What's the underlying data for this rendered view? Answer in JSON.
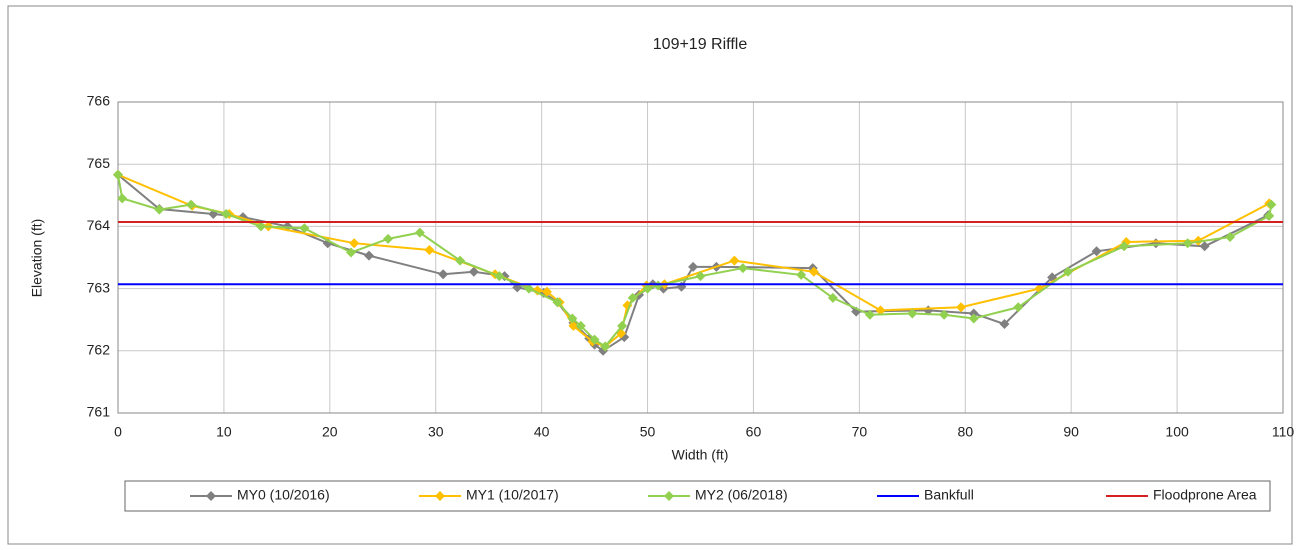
{
  "chart_data": {
    "type": "line",
    "title": "109+19 Riffle",
    "x_label": "Width (ft)",
    "y_label": "Elevation (ft)",
    "xlim": [
      0,
      110
    ],
    "xticks": [
      0,
      10,
      20,
      30,
      40,
      50,
      60,
      70,
      80,
      90,
      100,
      110
    ],
    "ylim": [
      761,
      766
    ],
    "yticks": [
      761,
      762,
      763,
      764,
      765,
      766
    ],
    "grid": true,
    "legend": "bottom",
    "series": [
      {
        "name": "MY0 (10/2016)",
        "color": "#808080",
        "marker": "diamond",
        "x": [
          0,
          3.9,
          9,
          11.8,
          16,
          19.8,
          23.7,
          30.7,
          33.6,
          36.5,
          37.7,
          40.2,
          41.5,
          43,
          44.5,
          45,
          45.8,
          47.8,
          49.2,
          50.5,
          51.5,
          53.2,
          54.3,
          56.5,
          65.6,
          69.7,
          76.5,
          80.8,
          83.7,
          88.2,
          92.4,
          98,
          102.6,
          108.6
        ],
        "values": [
          764.83,
          764.28,
          764.2,
          764.15,
          764.0,
          763.73,
          763.53,
          763.23,
          763.27,
          763.2,
          763.02,
          762.93,
          762.78,
          762.45,
          762.2,
          762.1,
          762.0,
          762.22,
          762.9,
          763.07,
          763.0,
          763.03,
          763.35,
          763.35,
          763.33,
          762.63,
          762.65,
          762.6,
          762.43,
          763.18,
          763.6,
          763.73,
          763.68,
          764.18
        ]
      },
      {
        "name": "MY1 (10/2017)",
        "color": "#ffc000",
        "marker": "diamond",
        "x": [
          0,
          7,
          10.5,
          14.2,
          22.3,
          29.4,
          35.6,
          39.6,
          40.5,
          41.7,
          43,
          44.8,
          46,
          47.5,
          48.1,
          49.9,
          51.6,
          58.2,
          65.7,
          72,
          79.6,
          87,
          95.2,
          102,
          108.7
        ],
        "values": [
          764.83,
          764.33,
          764.2,
          764.0,
          763.73,
          763.62,
          763.23,
          762.97,
          762.95,
          762.78,
          762.4,
          762.15,
          762.07,
          762.28,
          762.73,
          763.05,
          763.07,
          763.45,
          763.27,
          762.65,
          762.7,
          763.0,
          763.75,
          763.77,
          764.37
        ]
      },
      {
        "name": "MY2 (06/2018)",
        "color": "#92d050",
        "marker": "diamond",
        "x": [
          0,
          0.4,
          3.9,
          6.9,
          10.2,
          13.5,
          17.6,
          22,
          25.5,
          28.5,
          32.3,
          36,
          38.8,
          41.5,
          42.9,
          43.7,
          45,
          46,
          47.6,
          48.6,
          50,
          51,
          55,
          59,
          64.5,
          67.5,
          71,
          75,
          78,
          80.8,
          85,
          89.7,
          95,
          101,
          105,
          108.7,
          108.9
        ],
        "values": [
          764.83,
          764.45,
          764.27,
          764.35,
          764.2,
          764.0,
          763.97,
          763.58,
          763.8,
          763.9,
          763.45,
          763.2,
          763.0,
          762.78,
          762.52,
          762.4,
          762.18,
          762.07,
          762.4,
          762.85,
          763.0,
          763.05,
          763.2,
          763.33,
          763.22,
          762.85,
          762.58,
          762.6,
          762.58,
          762.52,
          762.7,
          763.27,
          763.68,
          763.73,
          763.83,
          764.17,
          764.35
        ]
      },
      {
        "name": "Bankfull",
        "color": "#0000ff",
        "marker": null,
        "x": [
          0,
          110
        ],
        "values": [
          763.07,
          763.07
        ]
      },
      {
        "name": "Floodprone Area",
        "color": "#d42020",
        "marker": null,
        "x": [
          0,
          110
        ],
        "values": [
          764.07,
          764.07
        ]
      }
    ]
  }
}
